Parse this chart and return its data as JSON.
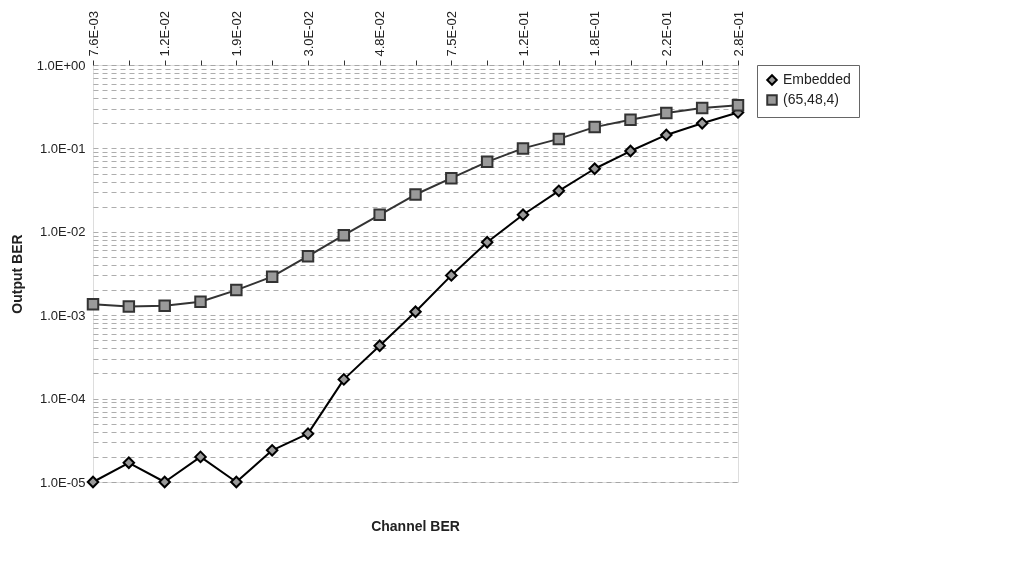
{
  "chart_data": {
    "type": "line",
    "categories": [
      "7.6E-03",
      null,
      "1.2E-02",
      null,
      "1.9E-02",
      null,
      "3.0E-02",
      null,
      "4.8E-02",
      null,
      "7.5E-02",
      null,
      "1.2E-01",
      null,
      "1.8E-01",
      null,
      "2.2E-01",
      null,
      "2.8E-01"
    ],
    "xlabel": "Channel BER",
    "ylabel": "Output BER",
    "series": [
      {
        "name": "Embedded",
        "color": "#000000",
        "marker": "diamond",
        "values": [
          1e-05,
          1.7e-05,
          1e-05,
          2e-05,
          1e-05,
          2.4e-05,
          3.8e-05,
          0.00017,
          0.00043,
          0.0011,
          0.003,
          0.0075,
          0.016,
          0.031,
          0.057,
          0.093,
          0.145,
          0.2,
          0.27
        ]
      },
      {
        "name": "(65,48,4)",
        "color": "#333333",
        "marker": "square",
        "values": [
          0.00135,
          0.00127,
          0.0013,
          0.00145,
          0.002,
          0.0029,
          0.0051,
          0.0091,
          0.016,
          0.028,
          0.044,
          0.069,
          0.1,
          0.13,
          0.18,
          0.22,
          0.265,
          0.305,
          0.33
        ]
      }
    ],
    "log": "y",
    "ylim": [
      1e-05,
      1
    ],
    "yticks": [
      {
        "value": 1e-05,
        "label": "1.0E-05"
      },
      {
        "value": 2e-05,
        "label": null
      },
      {
        "value": 3e-05,
        "label": null
      },
      {
        "value": 4e-05,
        "label": null
      },
      {
        "value": 5e-05,
        "label": null
      },
      {
        "value": 6e-05,
        "label": null
      },
      {
        "value": 7e-05,
        "label": null
      },
      {
        "value": 8e-05,
        "label": null
      },
      {
        "value": 9e-05,
        "label": null
      },
      {
        "value": 0.0001,
        "label": "1.0E-04"
      },
      {
        "value": 0.0002,
        "label": null
      },
      {
        "value": 0.0003,
        "label": null
      },
      {
        "value": 0.0004,
        "label": null
      },
      {
        "value": 0.0005,
        "label": null
      },
      {
        "value": 0.0006,
        "label": null
      },
      {
        "value": 0.0007,
        "label": null
      },
      {
        "value": 0.0008,
        "label": null
      },
      {
        "value": 0.0009,
        "label": null
      },
      {
        "value": 0.001,
        "label": "1.0E-03"
      },
      {
        "value": 0.002,
        "label": null
      },
      {
        "value": 0.003,
        "label": null
      },
      {
        "value": 0.004,
        "label": null
      },
      {
        "value": 0.005,
        "label": null
      },
      {
        "value": 0.006,
        "label": null
      },
      {
        "value": 0.007,
        "label": null
      },
      {
        "value": 0.008,
        "label": null
      },
      {
        "value": 0.009,
        "label": null
      },
      {
        "value": 0.01,
        "label": "1.0E-02"
      },
      {
        "value": 0.02,
        "label": null
      },
      {
        "value": 0.03,
        "label": null
      },
      {
        "value": 0.04,
        "label": null
      },
      {
        "value": 0.05,
        "label": null
      },
      {
        "value": 0.06,
        "label": null
      },
      {
        "value": 0.07,
        "label": null
      },
      {
        "value": 0.08,
        "label": null
      },
      {
        "value": 0.09,
        "label": null
      },
      {
        "value": 0.1,
        "label": "1.0E-01"
      },
      {
        "value": 0.2,
        "label": null
      },
      {
        "value": 0.3,
        "label": null
      },
      {
        "value": 0.4,
        "label": null
      },
      {
        "value": 0.5,
        "label": null
      },
      {
        "value": 0.6,
        "label": null
      },
      {
        "value": 0.7,
        "label": null
      },
      {
        "value": 0.8,
        "label": null
      },
      {
        "value": 0.9,
        "label": null
      },
      {
        "value": 1,
        "label": "1.0E+00"
      }
    ],
    "grid": "y",
    "legend": "right",
    "line_style": "solid"
  }
}
